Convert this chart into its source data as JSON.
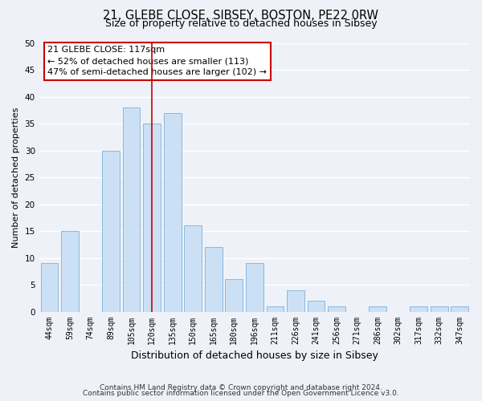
{
  "title_line1": "21, GLEBE CLOSE, SIBSEY, BOSTON, PE22 0RW",
  "title_line2": "Size of property relative to detached houses in Sibsey",
  "xlabel": "Distribution of detached houses by size in Sibsey",
  "ylabel": "Number of detached properties",
  "bar_labels": [
    "44sqm",
    "59sqm",
    "74sqm",
    "89sqm",
    "105sqm",
    "120sqm",
    "135sqm",
    "150sqm",
    "165sqm",
    "180sqm",
    "196sqm",
    "211sqm",
    "226sqm",
    "241sqm",
    "256sqm",
    "271sqm",
    "286sqm",
    "302sqm",
    "317sqm",
    "332sqm",
    "347sqm"
  ],
  "bar_values": [
    9,
    15,
    0,
    30,
    38,
    35,
    37,
    16,
    12,
    6,
    9,
    1,
    4,
    2,
    1,
    0,
    1,
    0,
    1,
    1,
    1
  ],
  "bar_color": "#cce0f5",
  "bar_edge_color": "#89b8dd",
  "vline_x_index": 5,
  "vline_color": "#cc0000",
  "ylim": [
    0,
    50
  ],
  "yticks": [
    0,
    5,
    10,
    15,
    20,
    25,
    30,
    35,
    40,
    45,
    50
  ],
  "annotation_title": "21 GLEBE CLOSE: 117sqm",
  "annotation_line2": "← 52% of detached houses are smaller (113)",
  "annotation_line3": "47% of semi-detached houses are larger (102) →",
  "footer_line1": "Contains HM Land Registry data © Crown copyright and database right 2024.",
  "footer_line2": "Contains public sector information licensed under the Open Government Licence v3.0.",
  "background_color": "#eef2f8",
  "grid_color": "#ffffff",
  "title1_fontsize": 10.5,
  "title2_fontsize": 9,
  "ylabel_fontsize": 8,
  "xlabel_fontsize": 9,
  "tick_fontsize": 7,
  "annotation_fontsize": 8,
  "footer_fontsize": 6.5
}
